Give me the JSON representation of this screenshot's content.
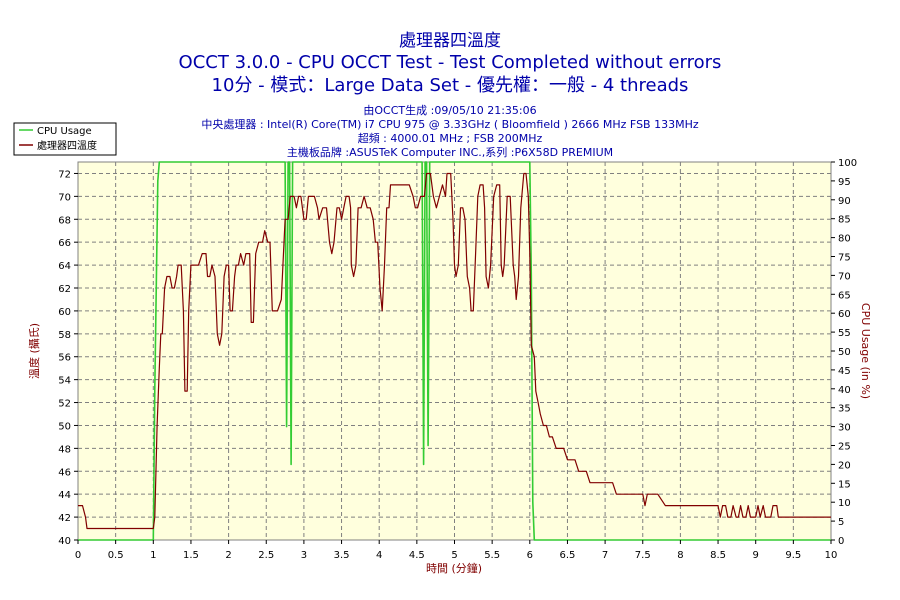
{
  "chart_data": {
    "type": "line",
    "title": "處理器四溫度",
    "subtitle_lines": [
      "OCCT 3.0.0 - CPU OCCT Test - Test Completed without errors",
      "10分 - 模式：Large Data Set - 優先權：一般 - 4 threads"
    ],
    "info_lines": [
      "由OCCT生成 :09/05/10 21:35:06",
      "中央處理器 : Intel(R) Core(TM) i7 CPU 975 @ 3.33GHz ( Bloomfield ) 2666 MHz FSB 133MHz",
      "超頻 : 4000.01 MHz ; FSB 200MHz",
      "主機板品牌 :ASUSTeK Computer INC.,系列 :P6X58D PREMIUM"
    ],
    "xlabel": "時間 (分鐘)",
    "ylabel_left": "溫度 (攝氏)",
    "ylabel_right": "CPU Usage (in %)",
    "xlim": [
      0,
      10
    ],
    "ylim_left": [
      40,
      73
    ],
    "ylim_right": [
      0,
      100
    ],
    "x_ticks": [
      "0",
      "0.5",
      "1",
      "1.5",
      "2",
      "2.5",
      "3",
      "3.5",
      "4",
      "4.5",
      "5",
      "5.5",
      "6",
      "6.5",
      "7",
      "7.5",
      "8",
      "8.5",
      "9",
      "9.5",
      "10"
    ],
    "y_ticks_left": [
      "40",
      "42",
      "44",
      "46",
      "48",
      "50",
      "52",
      "54",
      "56",
      "58",
      "60",
      "62",
      "64",
      "66",
      "68",
      "70",
      "72"
    ],
    "y_ticks_right": [
      "0",
      "5",
      "10",
      "15",
      "20",
      "25",
      "30",
      "35",
      "40",
      "45",
      "50",
      "55",
      "60",
      "65",
      "70",
      "75",
      "80",
      "85",
      "90",
      "95",
      "100"
    ],
    "grid": true,
    "legend_position": "top-left",
    "series": [
      {
        "name": "CPU Usage",
        "axis": "right",
        "color": "#33cc33",
        "points": [
          [
            0,
            0
          ],
          [
            1.0,
            0
          ],
          [
            1.02,
            40
          ],
          [
            1.06,
            95
          ],
          [
            1.08,
            100
          ],
          [
            1.1,
            100
          ],
          [
            1.5,
            100
          ],
          [
            1.6,
            100
          ],
          [
            1.62,
            100
          ],
          [
            2.5,
            100
          ],
          [
            2.75,
            100
          ],
          [
            2.77,
            30
          ],
          [
            2.79,
            100
          ],
          [
            2.81,
            100
          ],
          [
            2.83,
            20
          ],
          [
            2.85,
            100
          ],
          [
            2.87,
            100
          ],
          [
            4.4,
            100
          ],
          [
            4.57,
            100
          ],
          [
            4.59,
            20
          ],
          [
            4.61,
            100
          ],
          [
            4.63,
            100
          ],
          [
            4.65,
            25
          ],
          [
            4.67,
            100
          ],
          [
            4.69,
            100
          ],
          [
            5.8,
            100
          ],
          [
            6.0,
            100
          ],
          [
            6.02,
            70
          ],
          [
            6.04,
            10
          ],
          [
            6.06,
            0
          ],
          [
            10,
            0
          ]
        ]
      },
      {
        "name": "處理器四溫度",
        "axis": "left",
        "color": "#800000",
        "points": [
          [
            0,
            43
          ],
          [
            0.06,
            43
          ],
          [
            0.1,
            42
          ],
          [
            0.12,
            41
          ],
          [
            1.0,
            41
          ],
          [
            1.02,
            42
          ],
          [
            1.05,
            50
          ],
          [
            1.08,
            55
          ],
          [
            1.1,
            58
          ],
          [
            1.12,
            58
          ],
          [
            1.15,
            62
          ],
          [
            1.18,
            63
          ],
          [
            1.22,
            63
          ],
          [
            1.25,
            62
          ],
          [
            1.28,
            62
          ],
          [
            1.31,
            63
          ],
          [
            1.33,
            64
          ],
          [
            1.37,
            64
          ],
          [
            1.4,
            60
          ],
          [
            1.42,
            53
          ],
          [
            1.45,
            53
          ],
          [
            1.47,
            60
          ],
          [
            1.5,
            64
          ],
          [
            1.55,
            64
          ],
          [
            1.6,
            64
          ],
          [
            1.65,
            65
          ],
          [
            1.7,
            65
          ],
          [
            1.72,
            63
          ],
          [
            1.75,
            63
          ],
          [
            1.78,
            64
          ],
          [
            1.82,
            63
          ],
          [
            1.85,
            58
          ],
          [
            1.88,
            57
          ],
          [
            1.91,
            58
          ],
          [
            1.94,
            63
          ],
          [
            1.97,
            64
          ],
          [
            2.0,
            64
          ],
          [
            2.02,
            60
          ],
          [
            2.05,
            60
          ],
          [
            2.08,
            63
          ],
          [
            2.1,
            64
          ],
          [
            2.13,
            64
          ],
          [
            2.16,
            65
          ],
          [
            2.2,
            64
          ],
          [
            2.23,
            65
          ],
          [
            2.28,
            65
          ],
          [
            2.3,
            59
          ],
          [
            2.33,
            59
          ],
          [
            2.36,
            65
          ],
          [
            2.4,
            66
          ],
          [
            2.45,
            66
          ],
          [
            2.48,
            67
          ],
          [
            2.52,
            66
          ],
          [
            2.55,
            66
          ],
          [
            2.58,
            60
          ],
          [
            2.65,
            60
          ],
          [
            2.7,
            61
          ],
          [
            2.75,
            68
          ],
          [
            2.79,
            68
          ],
          [
            2.82,
            70
          ],
          [
            2.87,
            70
          ],
          [
            2.9,
            69
          ],
          [
            2.93,
            70
          ],
          [
            2.96,
            70
          ],
          [
            3.0,
            68
          ],
          [
            3.03,
            68
          ],
          [
            3.06,
            70
          ],
          [
            3.1,
            70
          ],
          [
            3.14,
            70
          ],
          [
            3.18,
            69
          ],
          [
            3.2,
            68
          ],
          [
            3.25,
            69
          ],
          [
            3.3,
            69
          ],
          [
            3.34,
            66
          ],
          [
            3.37,
            65
          ],
          [
            3.4,
            66
          ],
          [
            3.44,
            69
          ],
          [
            3.47,
            69
          ],
          [
            3.5,
            68
          ],
          [
            3.53,
            69
          ],
          [
            3.56,
            70
          ],
          [
            3.6,
            70
          ],
          [
            3.62,
            69
          ],
          [
            3.63,
            64
          ],
          [
            3.66,
            63
          ],
          [
            3.69,
            64
          ],
          [
            3.72,
            69
          ],
          [
            3.76,
            69
          ],
          [
            3.8,
            70
          ],
          [
            3.84,
            69
          ],
          [
            3.88,
            69
          ],
          [
            3.92,
            68
          ],
          [
            3.95,
            66
          ],
          [
            3.98,
            66
          ],
          [
            4.01,
            62
          ],
          [
            4.04,
            60
          ],
          [
            4.07,
            64
          ],
          [
            4.1,
            69
          ],
          [
            4.13,
            69
          ],
          [
            4.15,
            71
          ],
          [
            4.2,
            71
          ],
          [
            4.3,
            71
          ],
          [
            4.4,
            71
          ],
          [
            4.45,
            70
          ],
          [
            4.48,
            69
          ],
          [
            4.51,
            69
          ],
          [
            4.55,
            70
          ],
          [
            4.6,
            70
          ],
          [
            4.63,
            72
          ],
          [
            4.68,
            72
          ],
          [
            4.72,
            70
          ],
          [
            4.76,
            69
          ],
          [
            4.8,
            70
          ],
          [
            4.84,
            71
          ],
          [
            4.88,
            70
          ],
          [
            4.9,
            72
          ],
          [
            4.95,
            72
          ],
          [
            4.98,
            68
          ],
          [
            5.0,
            64
          ],
          [
            5.02,
            63
          ],
          [
            5.05,
            64
          ],
          [
            5.08,
            69
          ],
          [
            5.11,
            69
          ],
          [
            5.14,
            68
          ],
          [
            5.17,
            63
          ],
          [
            5.2,
            62
          ],
          [
            5.22,
            60
          ],
          [
            5.25,
            60
          ],
          [
            5.28,
            65
          ],
          [
            5.31,
            70
          ],
          [
            5.34,
            71
          ],
          [
            5.38,
            71
          ],
          [
            5.4,
            69
          ],
          [
            5.42,
            63
          ],
          [
            5.45,
            62
          ],
          [
            5.48,
            64
          ],
          [
            5.52,
            70
          ],
          [
            5.56,
            71
          ],
          [
            5.6,
            71
          ],
          [
            5.62,
            64
          ],
          [
            5.64,
            63
          ],
          [
            5.66,
            64
          ],
          [
            5.7,
            70
          ],
          [
            5.74,
            70
          ],
          [
            5.78,
            64
          ],
          [
            5.8,
            63
          ],
          [
            5.82,
            61
          ],
          [
            5.85,
            63
          ],
          [
            5.88,
            69
          ],
          [
            5.92,
            72
          ],
          [
            5.95,
            72
          ],
          [
            5.98,
            70
          ],
          [
            6.0,
            65
          ],
          [
            6.02,
            57
          ],
          [
            6.06,
            56
          ],
          [
            6.08,
            53
          ],
          [
            6.11,
            52
          ],
          [
            6.14,
            51
          ],
          [
            6.18,
            50
          ],
          [
            6.22,
            50
          ],
          [
            6.26,
            49
          ],
          [
            6.3,
            49
          ],
          [
            6.35,
            48
          ],
          [
            6.45,
            48
          ],
          [
            6.5,
            47
          ],
          [
            6.6,
            47
          ],
          [
            6.65,
            46
          ],
          [
            6.75,
            46
          ],
          [
            6.8,
            45
          ],
          [
            7.1,
            45
          ],
          [
            7.15,
            44
          ],
          [
            7.4,
            44
          ],
          [
            7.5,
            44
          ],
          [
            7.53,
            43
          ],
          [
            7.56,
            44
          ],
          [
            7.7,
            44
          ],
          [
            7.8,
            43
          ],
          [
            8.4,
            43
          ],
          [
            8.5,
            43
          ],
          [
            8.53,
            42
          ],
          [
            8.56,
            43
          ],
          [
            8.6,
            43
          ],
          [
            8.63,
            42
          ],
          [
            8.67,
            42
          ],
          [
            8.7,
            43
          ],
          [
            8.74,
            42
          ],
          [
            8.77,
            42
          ],
          [
            8.8,
            43
          ],
          [
            8.83,
            42
          ],
          [
            8.87,
            42
          ],
          [
            8.9,
            43
          ],
          [
            8.93,
            42
          ],
          [
            9.0,
            42
          ],
          [
            9.03,
            43
          ],
          [
            9.06,
            42
          ],
          [
            9.1,
            43
          ],
          [
            9.13,
            42
          ],
          [
            9.2,
            42
          ],
          [
            9.23,
            43
          ],
          [
            9.28,
            43
          ],
          [
            9.3,
            42
          ],
          [
            10,
            42
          ]
        ]
      }
    ]
  }
}
